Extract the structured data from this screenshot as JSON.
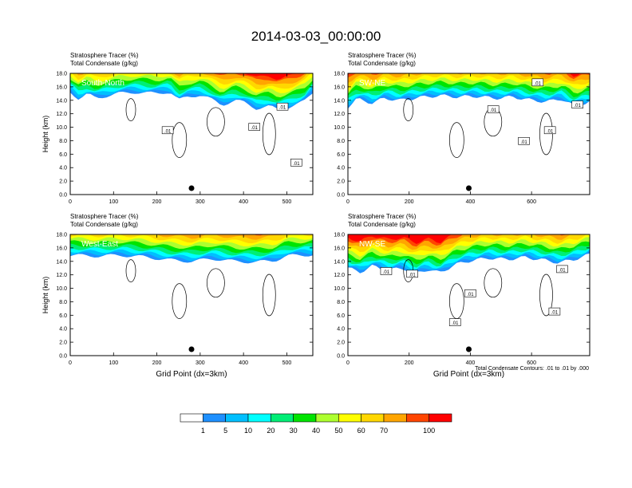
{
  "figure_title": "2014-03-03_00:00:00",
  "chart_data": [
    {
      "type": "heatmap",
      "panel_label": "South-North",
      "subtitle_top": "Stratosphere Tracer   (%)",
      "subtitle_bottom": "Total Condensate   (g/kg)",
      "ylabel": "Height (km)",
      "xlabel": "",
      "xlim": [
        0,
        560
      ],
      "ylim": [
        0,
        18
      ],
      "xticks": [
        0,
        100,
        200,
        300,
        400,
        500
      ],
      "yticks": [
        "0.0",
        "2.0",
        "4.0",
        "6.0",
        "8.0",
        "10.0",
        "12.0",
        "14.0",
        "16.0",
        "18.0"
      ],
      "tracer_base_profile": [
        [
          0,
          15.3
        ],
        [
          20,
          14.2
        ],
        [
          40,
          14.9
        ],
        [
          60,
          14.3
        ],
        [
          80,
          14.6
        ],
        [
          110,
          15.0
        ],
        [
          150,
          15.2
        ],
        [
          200,
          15.0
        ],
        [
          230,
          15.3
        ],
        [
          250,
          14.0
        ],
        [
          270,
          14.5
        ],
        [
          300,
          14.8
        ],
        [
          320,
          14.3
        ],
        [
          350,
          13.3
        ],
        [
          380,
          14.0
        ],
        [
          400,
          13.7
        ],
        [
          430,
          12.8
        ],
        [
          460,
          13.1
        ],
        [
          480,
          12.6
        ],
        [
          500,
          12.9
        ],
        [
          520,
          13.3
        ],
        [
          540,
          13.8
        ],
        [
          560,
          15.2
        ]
      ],
      "contour_labels": [
        {
          "text": ".01",
          "x": 225,
          "y": 9.5
        },
        {
          "text": ".01",
          "x": 425,
          "y": 10.0
        },
        {
          "text": ".01",
          "x": 490,
          "y": 13.0
        },
        {
          "text": ".01",
          "x": 522,
          "y": 4.7
        }
      ]
    },
    {
      "type": "heatmap",
      "panel_label": "SW-NE",
      "subtitle_top": "Stratosphere Tracer   (%)",
      "subtitle_bottom": "Total Condensate   (g/kg)",
      "ylabel": "",
      "xlabel": "",
      "xlim": [
        0,
        790
      ],
      "ylim": [
        0,
        18
      ],
      "xticks": [
        0,
        200,
        400,
        600
      ],
      "yticks": [
        "0.0",
        "2.0",
        "4.0",
        "6.0",
        "8.0",
        "10.0",
        "12.0",
        "14.0",
        "16.0",
        "18.0"
      ],
      "tracer_base_profile": [
        [
          0,
          13.0
        ],
        [
          30,
          14.2
        ],
        [
          80,
          13.6
        ],
        [
          120,
          14.3
        ],
        [
          170,
          14.0
        ],
        [
          230,
          14.4
        ],
        [
          300,
          14.7
        ],
        [
          360,
          14.5
        ],
        [
          420,
          14.6
        ],
        [
          480,
          14.3
        ],
        [
          540,
          14.5
        ],
        [
          600,
          14.0
        ],
        [
          650,
          13.8
        ],
        [
          700,
          14.2
        ],
        [
          740,
          13.1
        ],
        [
          790,
          13.8
        ]
      ],
      "contour_labels": [
        {
          "text": ".01",
          "x": 620,
          "y": 16.6
        },
        {
          "text": ".01",
          "x": 475,
          "y": 12.6
        },
        {
          "text": ".01",
          "x": 575,
          "y": 7.9
        },
        {
          "text": ".01",
          "x": 660,
          "y": 9.5
        },
        {
          "text": ".01",
          "x": 750,
          "y": 13.3
        }
      ]
    },
    {
      "type": "heatmap",
      "panel_label": "West-East",
      "subtitle_top": "Stratosphere Tracer   (%)",
      "subtitle_bottom": "Total Condensate   (g/kg)",
      "ylabel": "Height (km)",
      "xlabel": "Grid Point (dx=3km)",
      "xlim": [
        0,
        560
      ],
      "ylim": [
        0,
        18
      ],
      "xticks": [
        0,
        100,
        200,
        300,
        400,
        500
      ],
      "yticks": [
        "0.0",
        "2.0",
        "4.0",
        "6.0",
        "8.0",
        "10.0",
        "12.0",
        "14.0",
        "16.0",
        "18.0"
      ],
      "tracer_base_profile": [
        [
          0,
          14.9
        ],
        [
          60,
          14.8
        ],
        [
          120,
          14.9
        ],
        [
          180,
          14.6
        ],
        [
          230,
          14.2
        ],
        [
          280,
          14.0
        ],
        [
          330,
          14.4
        ],
        [
          380,
          14.0
        ],
        [
          430,
          13.9
        ],
        [
          470,
          14.1
        ],
        [
          500,
          14.8
        ],
        [
          560,
          15.0
        ]
      ],
      "contour_labels": []
    },
    {
      "type": "heatmap",
      "panel_label": "NW-SE",
      "subtitle_top": "Stratosphere Tracer   (%)",
      "subtitle_bottom": "Total Condensate   (g/kg)",
      "ylabel": "",
      "xlabel": "Grid Point (dx=3km)",
      "xlim": [
        0,
        790
      ],
      "ylim": [
        0,
        18
      ],
      "xticks": [
        0,
        200,
        400,
        600
      ],
      "yticks": [
        "0.0",
        "2.0",
        "4.0",
        "6.0",
        "8.0",
        "10.0",
        "12.0",
        "14.0",
        "16.0",
        "18.0"
      ],
      "tracer_base_profile": [
        [
          0,
          13.0
        ],
        [
          40,
          12.4
        ],
        [
          80,
          13.3
        ],
        [
          130,
          12.7
        ],
        [
          180,
          13.0
        ],
        [
          220,
          12.2
        ],
        [
          260,
          12.8
        ],
        [
          300,
          12.3
        ],
        [
          350,
          13.5
        ],
        [
          400,
          14.1
        ],
        [
          460,
          14.5
        ],
        [
          520,
          14.3
        ],
        [
          580,
          14.6
        ],
        [
          640,
          14.2
        ],
        [
          690,
          13.8
        ],
        [
          740,
          14.3
        ],
        [
          790,
          15.0
        ]
      ],
      "contour_labels": [
        {
          "text": ".01",
          "x": 125,
          "y": 12.5
        },
        {
          "text": ".01",
          "x": 210,
          "y": 12.1
        },
        {
          "text": ".01",
          "x": 400,
          "y": 9.2
        },
        {
          "text": ".01",
          "x": 350,
          "y": 4.9
        },
        {
          "text": ".01",
          "x": 700,
          "y": 12.8
        },
        {
          "text": ".01",
          "x": 675,
          "y": 6.5
        }
      ]
    }
  ],
  "contour_note": "Total Condensate Contours: .01 to .01 by .000",
  "colorbar": {
    "labels": [
      "1",
      "5",
      "10",
      "20",
      "30",
      "40",
      "50",
      "60",
      "70",
      "100"
    ],
    "colors": [
      "#ffffff",
      "#1e90ff",
      "#00bfff",
      "#00ffff",
      "#00ee76",
      "#00e400",
      "#adff2f",
      "#ffff00",
      "#ffd700",
      "#ffa500",
      "#ff4500",
      "#ff0000"
    ]
  }
}
